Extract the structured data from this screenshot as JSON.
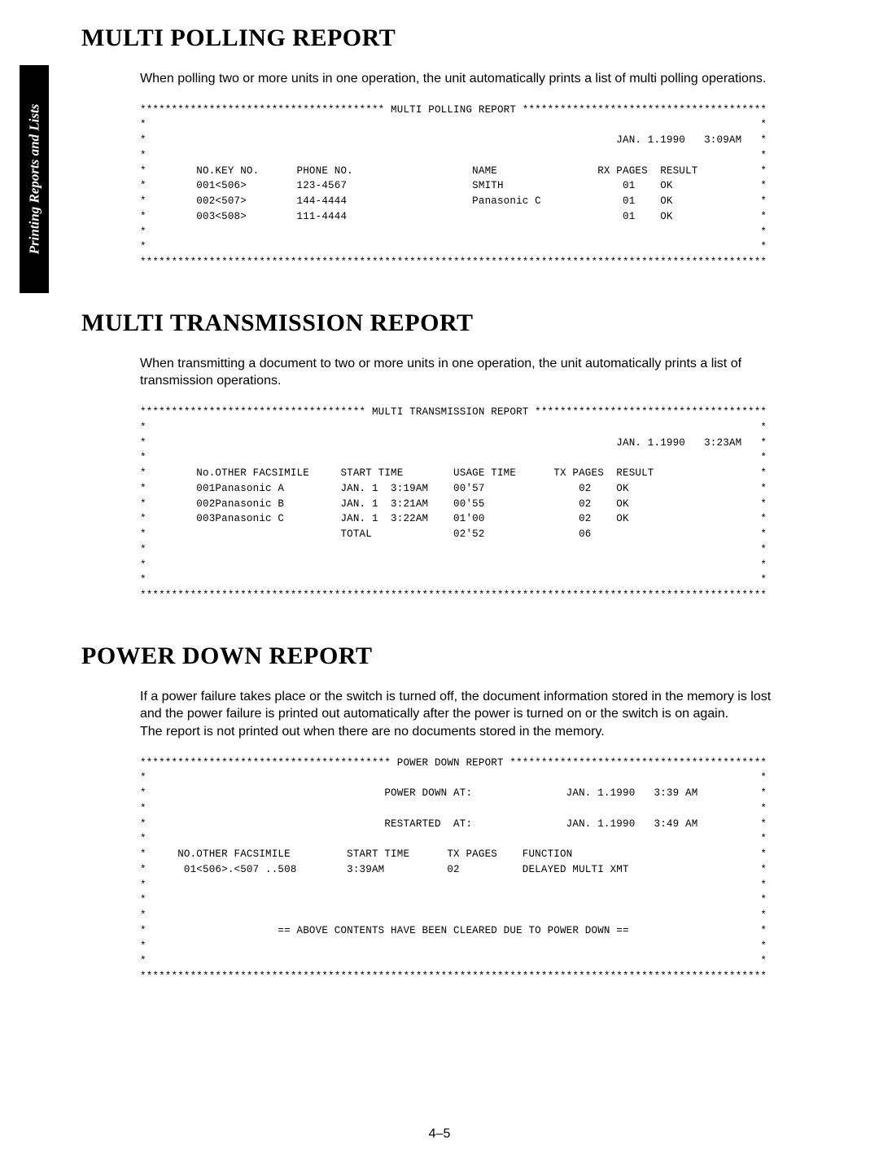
{
  "sideTab": "Printing Reports and Lists",
  "sections": [
    {
      "title": "MULTI POLLING REPORT",
      "intro": "When polling two or more units in one operation, the unit automatically prints a list of multi polling operations.",
      "printout": {
        "headerTitle": "MULTI POLLING REPORT",
        "timestamp": "JAN. 1.1990   3:09AM",
        "columns": [
          "NO.",
          "KEY NO.",
          "PHONE NO.",
          "NAME",
          "RX PAGES",
          "RESULT"
        ],
        "rows": [
          {
            "no": "001",
            "key": "<506>",
            "phone": "123-4567",
            "name": "SMITH",
            "pages": "01",
            "result": "OK"
          },
          {
            "no": "002",
            "key": "<507>",
            "phone": "144-4444",
            "name": "Panasonic C",
            "pages": "01",
            "result": "OK"
          },
          {
            "no": "003",
            "key": "<508>",
            "phone": "111-4444",
            "name": "",
            "pages": "01",
            "result": "OK"
          }
        ]
      }
    },
    {
      "title": "MULTI TRANSMISSION REPORT",
      "intro": "When transmitting a document to two or more units in one operation, the unit automatically prints a list of transmission operations.",
      "printout": {
        "headerTitle": "MULTI TRANSMISSION REPORT",
        "timestamp": "JAN. 1.1990   3:23AM",
        "columns": [
          "No.",
          "OTHER FACSIMILE",
          "START TIME",
          "USAGE TIME",
          "TX PAGES",
          "RESULT"
        ],
        "rows": [
          {
            "no": "001",
            "fax": "Panasonic A",
            "start": "JAN. 1  3:19AM",
            "usage": "00'57",
            "pages": "02",
            "result": "OK"
          },
          {
            "no": "002",
            "fax": "Panasonic B",
            "start": "JAN. 1  3:21AM",
            "usage": "00'55",
            "pages": "02",
            "result": "OK"
          },
          {
            "no": "003",
            "fax": "Panasonic C",
            "start": "JAN. 1  3:22AM",
            "usage": "01'00",
            "pages": "02",
            "result": "OK"
          }
        ],
        "total": {
          "label": "TOTAL",
          "usage": "02'52",
          "pages": "06"
        }
      }
    },
    {
      "title": "POWER DOWN REPORT",
      "intro": "If a power failure takes place or the switch is turned off, the document information stored in the memory is lost and the power failure is printed out automatically after the power is turned on or the switch is on again.\nThe report is not printed out when there are no documents stored in the memory.",
      "printout": {
        "headerTitle": "POWER DOWN REPORT",
        "powerDownAt": {
          "label": "POWER DOWN AT:",
          "value": "JAN. 1.1990   3:39 AM"
        },
        "restartedAt": {
          "label": "RESTARTED  AT:",
          "value": "JAN. 1.1990   3:49 AM"
        },
        "columns": [
          "NO.",
          "OTHER FACSIMILE",
          "START TIME",
          "TX PAGES",
          "FUNCTION"
        ],
        "rows": [
          {
            "no": "01",
            "fax": "<506>.<507 ..508",
            "start": "3:39AM",
            "pages": "02",
            "func": "DELAYED MULTI XMT"
          }
        ],
        "footerNote": "== ABOVE CONTENTS HAVE BEEN CLEARED DUE TO POWER DOWN =="
      }
    }
  ],
  "pageNumber": "4–5"
}
